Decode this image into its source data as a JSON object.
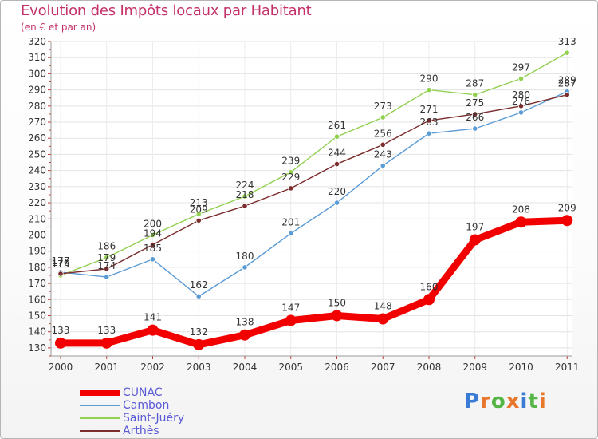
{
  "title": "Evolution des Impôts locaux par Habitant",
  "subtitle": "(en € et par an)",
  "logo": {
    "text": "Proxiti",
    "letter_colors": [
      "#3a7bd5",
      "#e8772e",
      "#55b545",
      "#e8772e",
      "#3a7bd5",
      "#55b545",
      "#e8772e"
    ]
  },
  "chart_data": {
    "type": "line",
    "title": "Evolution des Impôts locaux par Habitant",
    "subtitle": "(en € et par an)",
    "xlabel": "",
    "ylabel": "",
    "categories": [
      "2000",
      "2001",
      "2002",
      "2003",
      "2004",
      "2005",
      "2006",
      "2007",
      "2008",
      "2009",
      "2010",
      "2011"
    ],
    "ylim": [
      125,
      320
    ],
    "yticks": [
      130,
      140,
      150,
      160,
      170,
      180,
      190,
      200,
      210,
      220,
      230,
      240,
      250,
      260,
      270,
      280,
      290,
      300,
      310,
      320
    ],
    "grid": true,
    "legend_position": "bottom-left",
    "series": [
      {
        "name": "CUNAC",
        "color": "#f20000",
        "emphasis": true,
        "values": [
          133,
          133,
          141,
          132,
          138,
          147,
          150,
          148,
          160,
          197,
          208,
          209
        ]
      },
      {
        "name": "Cambon",
        "color": "#5b9bd5",
        "emphasis": false,
        "values": [
          177,
          174,
          185,
          162,
          180,
          201,
          220,
          243,
          263,
          266,
          276,
          289
        ]
      },
      {
        "name": "Saint-Juéry",
        "color": "#92d050",
        "emphasis": false,
        "values": [
          175,
          186,
          200,
          213,
          224,
          239,
          261,
          273,
          290,
          287,
          297,
          313
        ]
      },
      {
        "name": "Arthès",
        "color": "#7b2c2c",
        "emphasis": false,
        "values": [
          176,
          179,
          194,
          209,
          218,
          229,
          244,
          256,
          271,
          275,
          280,
          287
        ]
      }
    ]
  }
}
